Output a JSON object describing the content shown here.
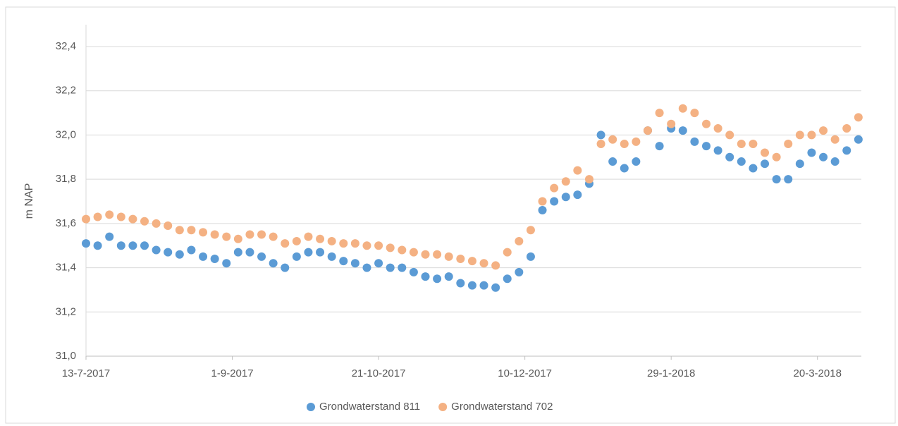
{
  "chart_data": {
    "type": "scatter",
    "y_label": "m NAP",
    "x": [
      "2017-07-13",
      "2017-07-17",
      "2017-07-21",
      "2017-07-25",
      "2017-07-29",
      "2017-08-02",
      "2017-08-06",
      "2017-08-10",
      "2017-08-14",
      "2017-08-18",
      "2017-08-22",
      "2017-08-26",
      "2017-08-30",
      "2017-09-03",
      "2017-09-07",
      "2017-09-11",
      "2017-09-15",
      "2017-09-19",
      "2017-09-23",
      "2017-09-27",
      "2017-10-01",
      "2017-10-05",
      "2017-10-09",
      "2017-10-13",
      "2017-10-17",
      "2017-10-21",
      "2017-10-25",
      "2017-10-29",
      "2017-11-02",
      "2017-11-06",
      "2017-11-10",
      "2017-11-14",
      "2017-11-18",
      "2017-11-22",
      "2017-11-26",
      "2017-11-30",
      "2017-12-04",
      "2017-12-08",
      "2017-12-12",
      "2017-12-16",
      "2017-12-20",
      "2017-12-24",
      "2017-12-28",
      "2018-01-01",
      "2018-01-05",
      "2018-01-09",
      "2018-01-13",
      "2018-01-17",
      "2018-01-21",
      "2018-01-25",
      "2018-01-29",
      "2018-02-02",
      "2018-02-06",
      "2018-02-10",
      "2018-02-14",
      "2018-02-18",
      "2018-02-22",
      "2018-02-26",
      "2018-03-02",
      "2018-03-06",
      "2018-03-10",
      "2018-03-14",
      "2018-03-18",
      "2018-03-22",
      "2018-03-26",
      "2018-03-30",
      "2018-04-03"
    ],
    "series": [
      {
        "name": "Grondwaterstand 811",
        "color": "#5b9bd5",
        "values": [
          31.51,
          31.5,
          31.54,
          31.5,
          31.5,
          31.5,
          31.48,
          31.47,
          31.46,
          31.48,
          31.45,
          31.44,
          31.42,
          31.47,
          31.47,
          31.45,
          31.42,
          31.4,
          31.45,
          31.47,
          31.47,
          31.45,
          31.43,
          31.42,
          31.4,
          31.42,
          31.4,
          31.4,
          31.38,
          31.36,
          31.35,
          31.36,
          31.33,
          31.32,
          31.32,
          31.31,
          31.35,
          31.38,
          31.45,
          31.66,
          31.7,
          31.72,
          31.73,
          31.78,
          32.0,
          31.88,
          31.85,
          31.88,
          32.02,
          31.95,
          32.03,
          32.02,
          31.97,
          31.95,
          31.93,
          31.9,
          31.88,
          31.85,
          31.87,
          31.8,
          31.8,
          31.87,
          31.92,
          31.9,
          31.88,
          31.93,
          31.98
        ]
      },
      {
        "name": "Grondwaterstand 702",
        "color": "#f4b183",
        "values": [
          31.62,
          31.63,
          31.64,
          31.63,
          31.62,
          31.61,
          31.6,
          31.59,
          31.57,
          31.57,
          31.56,
          31.55,
          31.54,
          31.53,
          31.55,
          31.55,
          31.54,
          31.51,
          31.52,
          31.54,
          31.53,
          31.52,
          31.51,
          31.51,
          31.5,
          31.5,
          31.49,
          31.48,
          31.47,
          31.46,
          31.46,
          31.45,
          31.44,
          31.43,
          31.42,
          31.41,
          31.47,
          31.52,
          31.57,
          31.7,
          31.76,
          31.79,
          31.84,
          31.8,
          31.96,
          31.98,
          31.96,
          31.97,
          32.02,
          32.1,
          32.05,
          32.12,
          32.1,
          32.05,
          32.03,
          32.0,
          31.96,
          31.96,
          31.92,
          31.9,
          31.96,
          32.0,
          32.0,
          32.02,
          31.98,
          32.03,
          32.08
        ]
      }
    ],
    "xlim": [
      "2017-07-13",
      "2018-04-04"
    ],
    "xticks": [
      {
        "value": "2017-07-13",
        "label": "13-7-2017"
      },
      {
        "value": "2017-09-01",
        "label": "1-9-2017"
      },
      {
        "value": "2017-10-21",
        "label": "21-10-2017"
      },
      {
        "value": "2017-12-10",
        "label": "10-12-2017"
      },
      {
        "value": "2018-01-29",
        "label": "29-1-2018"
      },
      {
        "value": "2018-03-20",
        "label": "20-3-2018"
      }
    ],
    "ylim": [
      31.0,
      32.4
    ],
    "yticks": [
      {
        "value": 31.0,
        "label": "31,0"
      },
      {
        "value": 31.2,
        "label": "31,2"
      },
      {
        "value": 31.4,
        "label": "31,4"
      },
      {
        "value": 31.6,
        "label": "31,6"
      },
      {
        "value": 31.8,
        "label": "31,8"
      },
      {
        "value": 32.0,
        "label": "32,0"
      },
      {
        "value": 32.2,
        "label": "32,2"
      },
      {
        "value": 32.4,
        "label": "32,4"
      }
    ],
    "grid": true,
    "legend": "bottom"
  }
}
